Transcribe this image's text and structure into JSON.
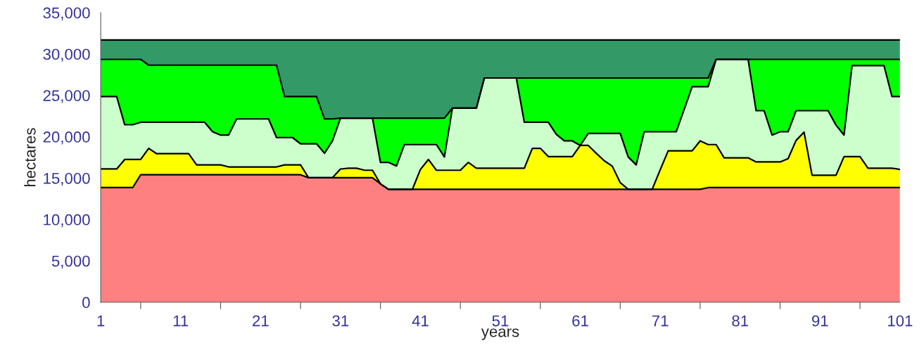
{
  "chart_data": {
    "type": "area",
    "stacked": true,
    "xlabel": "years",
    "ylabel": "hectares",
    "x": [
      1,
      2,
      3,
      4,
      5,
      6,
      7,
      8,
      9,
      10,
      11,
      12,
      13,
      14,
      15,
      16,
      17,
      18,
      19,
      20,
      21,
      22,
      23,
      24,
      25,
      26,
      27,
      28,
      29,
      30,
      31,
      32,
      33,
      34,
      35,
      36,
      37,
      38,
      39,
      40,
      41,
      42,
      43,
      44,
      45,
      46,
      47,
      48,
      49,
      50,
      51,
      52,
      53,
      54,
      55,
      56,
      57,
      58,
      59,
      60,
      61,
      62,
      63,
      64,
      65,
      66,
      67,
      68,
      69,
      70,
      71,
      72,
      73,
      74,
      75,
      76,
      77,
      78,
      79,
      80,
      81,
      82,
      83,
      84,
      85,
      86,
      87,
      88,
      89,
      90,
      91,
      92,
      93,
      94,
      95,
      96,
      97,
      98,
      99,
      100,
      101
    ],
    "series": [
      {
        "color": "#ff8080",
        "values": [
          13850,
          13850,
          13850,
          13850,
          13850,
          15400,
          15400,
          15400,
          15400,
          15400,
          15400,
          15400,
          15400,
          15400,
          15400,
          15400,
          15400,
          15400,
          15400,
          15400,
          15400,
          15400,
          15400,
          15400,
          15400,
          15400,
          15050,
          15050,
          15050,
          15050,
          15050,
          15050,
          15050,
          15050,
          15050,
          14300,
          13650,
          13650,
          13650,
          13650,
          13650,
          13650,
          13650,
          13650,
          13650,
          13650,
          13650,
          13650,
          13650,
          13650,
          13650,
          13650,
          13650,
          13650,
          13650,
          13650,
          13650,
          13650,
          13650,
          13650,
          13650,
          13650,
          13650,
          13650,
          13650,
          13650,
          13650,
          13650,
          13650,
          13650,
          13650,
          13650,
          13650,
          13650,
          13650,
          13650,
          13850,
          13850,
          13850,
          13850,
          13850,
          13850,
          13850,
          13850,
          13850,
          13850,
          13850,
          13850,
          13850,
          13850,
          13850,
          13850,
          13850,
          13850,
          13850,
          13850,
          13850,
          13850,
          13850,
          13850,
          13850
        ]
      },
      {
        "color": "#ffff00",
        "values": [
          2250,
          2250,
          2250,
          3400,
          3400,
          1850,
          3200,
          2550,
          2550,
          2550,
          2550,
          2550,
          1200,
          1200,
          1200,
          1200,
          950,
          950,
          950,
          950,
          950,
          950,
          950,
          1200,
          1200,
          1200,
          0,
          0,
          0,
          0,
          1050,
          1150,
          1150,
          900,
          900,
          0,
          0,
          0,
          0,
          0,
          2400,
          3600,
          2300,
          2300,
          2300,
          2300,
          3250,
          2550,
          2550,
          2550,
          2550,
          2550,
          2550,
          2550,
          4950,
          4950,
          3950,
          3950,
          3950,
          3950,
          5300,
          5300,
          4350,
          3450,
          2800,
          800,
          0,
          0,
          0,
          0,
          2350,
          4650,
          4650,
          4650,
          4650,
          5850,
          5200,
          5200,
          3600,
          3600,
          3600,
          3600,
          3100,
          3100,
          3100,
          3100,
          3500,
          5700,
          6700,
          1500,
          1500,
          1500,
          1500,
          3750,
          3750,
          3750,
          2350,
          2350,
          2350,
          2350,
          2200
        ]
      },
      {
        "color": "#ccffcc",
        "values": [
          8750,
          8750,
          8750,
          4200,
          4200,
          4500,
          3150,
          3800,
          3800,
          3800,
          3800,
          3800,
          5150,
          5150,
          4000,
          3600,
          3850,
          5800,
          5800,
          5800,
          5800,
          5800,
          3550,
          3300,
          3300,
          2550,
          4100,
          4100,
          2950,
          4450,
          6150,
          6050,
          6050,
          6300,
          6300,
          2600,
          3250,
          2800,
          5400,
          5400,
          3000,
          1800,
          3100,
          1600,
          7500,
          7500,
          6550,
          7250,
          10900,
          10900,
          10900,
          10900,
          10900,
          5550,
          3150,
          3150,
          4150,
          2700,
          1900,
          1900,
          0,
          1450,
          2400,
          3300,
          3950,
          5950,
          3900,
          2950,
          6950,
          6950,
          4600,
          2300,
          2300,
          5000,
          7750,
          6550,
          7000,
          10300,
          11900,
          11900,
          11900,
          11900,
          6200,
          6200,
          3250,
          3650,
          3250,
          3600,
          2600,
          7800,
          7800,
          7800,
          6050,
          2600,
          11000,
          11000,
          12400,
          12400,
          12400,
          8650,
          8800
        ]
      },
      {
        "color": "#00ff00",
        "values": [
          4500,
          4500,
          4500,
          7900,
          7900,
          7600,
          6900,
          6900,
          6900,
          6900,
          6900,
          6900,
          6900,
          6900,
          8050,
          8450,
          8450,
          6500,
          6500,
          6500,
          6500,
          6500,
          8750,
          4950,
          4950,
          5700,
          5700,
          5700,
          4150,
          2650,
          0,
          0,
          0,
          0,
          0,
          5350,
          5350,
          5800,
          3200,
          3200,
          3200,
          3200,
          3200,
          4700,
          0,
          0,
          0,
          0,
          0,
          0,
          0,
          0,
          0,
          5350,
          5350,
          5350,
          5350,
          6800,
          7600,
          7600,
          8150,
          6700,
          6700,
          6700,
          6700,
          6700,
          9550,
          10500,
          6500,
          6500,
          6500,
          6500,
          6500,
          3800,
          1050,
          1050,
          1050,
          0,
          0,
          0,
          0,
          0,
          6200,
          6200,
          9150,
          8750,
          8750,
          6200,
          6200,
          6200,
          6200,
          6200,
          7950,
          9150,
          750,
          750,
          750,
          750,
          750,
          4500,
          4500
        ]
      },
      {
        "color": "#339966",
        "values": [
          2350,
          2350,
          2350,
          2350,
          2350,
          2350,
          3050,
          3050,
          3050,
          3050,
          3050,
          3050,
          3050,
          3050,
          3050,
          3050,
          3050,
          3050,
          3050,
          3050,
          3050,
          3050,
          3050,
          6850,
          6850,
          6850,
          6850,
          6850,
          9550,
          9550,
          9450,
          9450,
          9450,
          9450,
          9450,
          9450,
          9450,
          9450,
          9450,
          9450,
          9450,
          9450,
          9450,
          9450,
          8250,
          8250,
          8250,
          8250,
          4600,
          4600,
          4600,
          4600,
          4600,
          4600,
          4600,
          4600,
          4600,
          4600,
          4600,
          4600,
          4600,
          4600,
          4600,
          4600,
          4600,
          4600,
          4600,
          4600,
          4600,
          4600,
          4600,
          4600,
          4600,
          4600,
          4600,
          4600,
          4600,
          2350,
          2350,
          2350,
          2350,
          2350,
          2350,
          2350,
          2350,
          2350,
          2350,
          2350,
          2350,
          2350,
          2350,
          2350,
          2350,
          2350,
          2350,
          2350,
          2350,
          2350,
          2350,
          2350,
          2350
        ]
      }
    ],
    "xlim": [
      1,
      101
    ],
    "xticks": [
      1,
      {
        "value": 6,
        "label": null
      },
      11,
      {
        "value": 16,
        "label": null
      },
      21,
      {
        "value": 26,
        "label": null
      },
      31,
      {
        "value": 36,
        "label": null
      },
      41,
      {
        "value": 46,
        "label": null
      },
      51,
      {
        "value": 56,
        "label": null
      },
      61,
      {
        "value": 66,
        "label": null
      },
      71,
      {
        "value": 76,
        "label": null
      },
      81,
      {
        "value": 86,
        "label": null
      },
      91,
      {
        "value": 96,
        "label": null
      },
      101
    ],
    "ylim": [
      0,
      35000
    ],
    "yticks": [
      0,
      {
        "value": 5000,
        "label": "5,000"
      },
      {
        "value": 10000,
        "label": "10,000"
      },
      {
        "value": 15000,
        "label": "15,000"
      },
      {
        "value": 20000,
        "label": "20,000"
      },
      {
        "value": 25000,
        "label": "25,000"
      },
      {
        "value": 30000,
        "label": "30,000"
      },
      {
        "value": 35000,
        "label": "35,000"
      }
    ],
    "grid": false
  }
}
